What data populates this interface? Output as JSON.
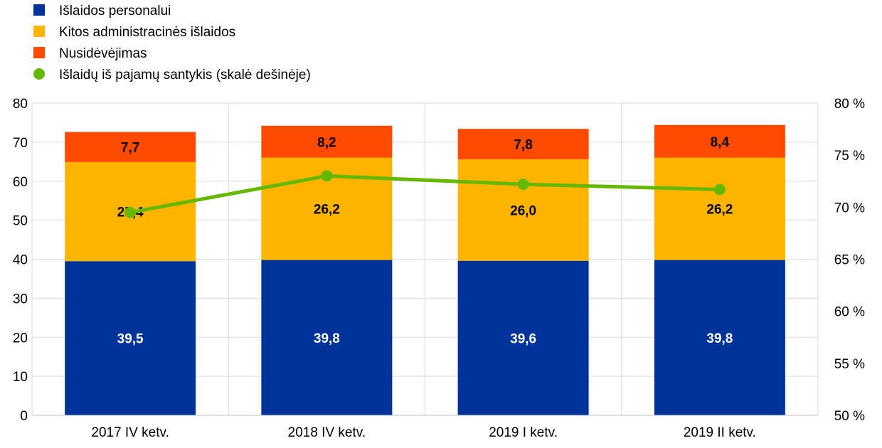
{
  "chart_data": {
    "type": "bar",
    "stacked": true,
    "categories": [
      "2017 IV ketv.",
      "2018 IV ketv.",
      "2019 I ketv.",
      "2019 II ketv."
    ],
    "series": [
      {
        "name": "Išlaidos personalui",
        "type": "bar",
        "axis": "left",
        "color": "#003399",
        "label_color": "#ffffff",
        "values": [
          39.5,
          39.8,
          39.6,
          39.8
        ],
        "labels": [
          "39,5",
          "39,8",
          "39,6",
          "39,8"
        ]
      },
      {
        "name": "Kitos administracinės išlaidos",
        "type": "bar",
        "axis": "left",
        "color": "#FFB400",
        "label_color": "#000000",
        "values": [
          25.4,
          26.2,
          26.0,
          26.2
        ],
        "labels": [
          "25,4",
          "26,2",
          "26,0",
          "26,2"
        ]
      },
      {
        "name": "Nusidėvėjimas",
        "type": "bar",
        "axis": "left",
        "color": "#FF4B00",
        "label_color": "#000000",
        "values": [
          7.7,
          8.2,
          7.8,
          8.4
        ],
        "labels": [
          "7,7",
          "8,2",
          "7,8",
          "8,4"
        ]
      },
      {
        "name": "Išlaidų iš pajamų santykis (skalė dešinėje)",
        "type": "line",
        "axis": "right",
        "color": "#65B800",
        "values": [
          69.5,
          73.0,
          72.2,
          71.7
        ]
      }
    ],
    "y_left": {
      "min": 0,
      "max": 80,
      "step": 10,
      "tick_labels": [
        "0",
        "10",
        "20",
        "30",
        "40",
        "50",
        "60",
        "70",
        "80"
      ]
    },
    "y_right": {
      "min": 50,
      "max": 80,
      "step": 5,
      "tick_labels": [
        "50 %",
        "55 %",
        "60 %",
        "65 %",
        "70 %",
        "75 %",
        "80 %"
      ]
    },
    "grid": true,
    "legend_position": "top-left"
  }
}
